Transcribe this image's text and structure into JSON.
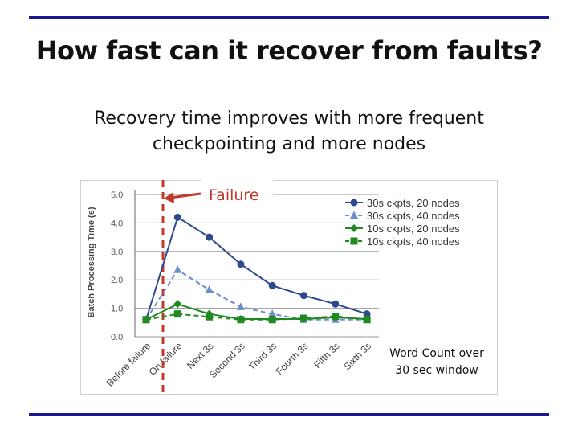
{
  "slide": {
    "title": "How fast can it recover from faults?",
    "subtitle_line1": "Recovery time improves with more frequent",
    "subtitle_line2": "checkpointing and more nodes",
    "note_line1": "Word Count over",
    "note_line2": "30 sec window",
    "accent_color": "#1a1a8c"
  },
  "chart_data": {
    "type": "line",
    "title": "",
    "xlabel": "",
    "ylabel": "Batch Processing Time (s)",
    "ylim": [
      0,
      5
    ],
    "yticks": [
      "0.0",
      "1.0",
      "2.0",
      "3.0",
      "4.0",
      "5.0"
    ],
    "grid": true,
    "legend_position": "top-right",
    "categories": [
      "Before failure",
      "On failure",
      "Next 3s",
      "Second 3s",
      "Third 3s",
      "Fourth 3s",
      "Fifth 3s",
      "Sixth 3s"
    ],
    "annotation": {
      "text": "Failure",
      "at_category": "On failure",
      "color": "#c0392b"
    },
    "series": [
      {
        "name": "30s ckpts, 20 nodes",
        "values": [
          0.6,
          4.2,
          3.5,
          2.55,
          1.8,
          1.45,
          1.15,
          0.8
        ],
        "color": "#2e4a8f",
        "marker": "circle",
        "dash": false
      },
      {
        "name": "30s ckpts, 40 nodes",
        "values": [
          0.6,
          2.35,
          1.65,
          1.05,
          0.8,
          0.6,
          0.6,
          0.6
        ],
        "color": "#6f8fc8",
        "marker": "triangle",
        "dash": true
      },
      {
        "name": "10s ckpts, 20 nodes",
        "values": [
          0.6,
          1.15,
          0.8,
          0.62,
          0.62,
          0.62,
          0.68,
          0.62
        ],
        "color": "#1f8a1f",
        "marker": "diamond",
        "dash": false
      },
      {
        "name": "10s ckpts, 40 nodes",
        "values": [
          0.6,
          0.8,
          0.7,
          0.6,
          0.6,
          0.65,
          0.72,
          0.6
        ],
        "color": "#1f8a1f",
        "marker": "square",
        "dash": true
      }
    ]
  }
}
